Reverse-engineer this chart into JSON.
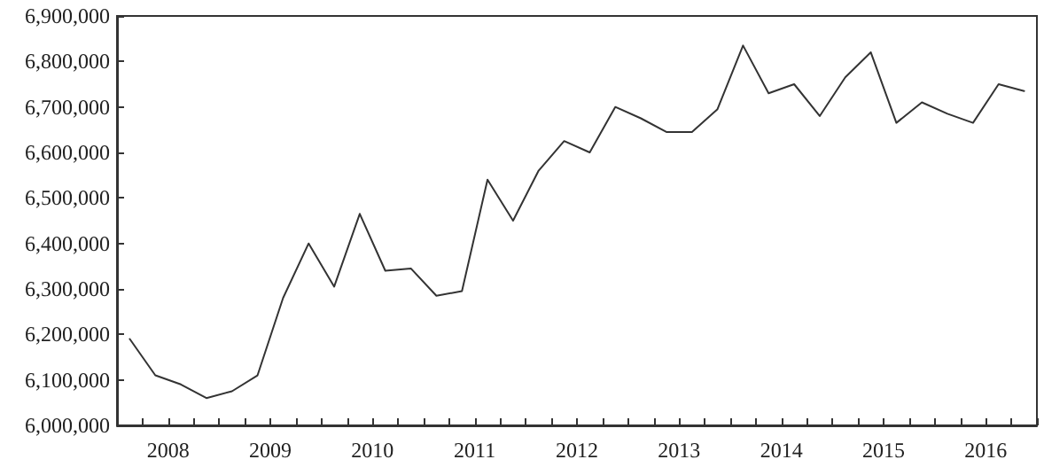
{
  "chart_data": {
    "type": "line",
    "x": [
      2008.125,
      2008.375,
      2008.625,
      2008.875,
      2009.125,
      2009.375,
      2009.625,
      2009.875,
      2010.125,
      2010.375,
      2010.625,
      2010.875,
      2011.125,
      2011.375,
      2011.625,
      2011.875,
      2012.125,
      2012.375,
      2012.625,
      2012.875,
      2013.125,
      2013.375,
      2013.625,
      2013.875,
      2014.125,
      2014.375,
      2014.625,
      2014.875,
      2015.125,
      2015.375,
      2015.625,
      2015.875,
      2016.125,
      2016.375,
      2016.625,
      2016.875
    ],
    "series": [
      {
        "color": "#333333",
        "values": [
          6190000,
          6110000,
          6090000,
          6060000,
          6075000,
          6110000,
          6280000,
          6400000,
          6305000,
          6465000,
          6340000,
          6345000,
          6285000,
          6295000,
          6540000,
          6450000,
          6560000,
          6625000,
          6600000,
          6700000,
          6675000,
          6645000,
          6645000,
          6695000,
          6835000,
          6730000,
          6750000,
          6680000,
          6765000,
          6820000,
          6665000,
          6710000,
          6685000,
          6665000,
          6750000,
          6735000
        ]
      }
    ],
    "xlim": [
      2008,
      2017
    ],
    "xticks": [
      {
        "value": 2008,
        "label": null
      },
      {
        "value": 2008.25,
        "label": null
      },
      {
        "value": 2008.5,
        "label": "2008"
      },
      {
        "value": 2008.75,
        "label": null
      },
      {
        "value": 2009,
        "label": null
      },
      {
        "value": 2009.25,
        "label": null
      },
      {
        "value": 2009.5,
        "label": "2009"
      },
      {
        "value": 2009.75,
        "label": null
      },
      {
        "value": 2010,
        "label": null
      },
      {
        "value": 2010.25,
        "label": null
      },
      {
        "value": 2010.5,
        "label": "2010"
      },
      {
        "value": 2010.75,
        "label": null
      },
      {
        "value": 2011,
        "label": null
      },
      {
        "value": 2011.25,
        "label": null
      },
      {
        "value": 2011.5,
        "label": "2011"
      },
      {
        "value": 2011.75,
        "label": null
      },
      {
        "value": 2012,
        "label": null
      },
      {
        "value": 2012.25,
        "label": null
      },
      {
        "value": 2012.5,
        "label": "2012"
      },
      {
        "value": 2012.75,
        "label": null
      },
      {
        "value": 2013,
        "label": null
      },
      {
        "value": 2013.25,
        "label": null
      },
      {
        "value": 2013.5,
        "label": "2013"
      },
      {
        "value": 2013.75,
        "label": null
      },
      {
        "value": 2014,
        "label": null
      },
      {
        "value": 2014.25,
        "label": null
      },
      {
        "value": 2014.5,
        "label": "2014"
      },
      {
        "value": 2014.75,
        "label": null
      },
      {
        "value": 2015,
        "label": null
      },
      {
        "value": 2015.25,
        "label": null
      },
      {
        "value": 2015.5,
        "label": "2015"
      },
      {
        "value": 2015.75,
        "label": null
      },
      {
        "value": 2016,
        "label": null
      },
      {
        "value": 2016.25,
        "label": null
      },
      {
        "value": 2016.5,
        "label": "2016"
      },
      {
        "value": 2016.75,
        "label": null
      },
      {
        "value": 2017,
        "label": null
      }
    ],
    "ylim": [
      6000000,
      6900000
    ],
    "yticks": [
      {
        "value": 6000000,
        "label": "6,000,000"
      },
      {
        "value": 6100000,
        "label": "6,100,000"
      },
      {
        "value": 6200000,
        "label": "6,200,000"
      },
      {
        "value": 6300000,
        "label": "6,300,000"
      },
      {
        "value": 6400000,
        "label": "6,400,000"
      },
      {
        "value": 6500000,
        "label": "6,500,000"
      },
      {
        "value": 6600000,
        "label": "6,600,000"
      },
      {
        "value": 6700000,
        "label": "6,700,000"
      },
      {
        "value": 6800000,
        "label": "6,800,000"
      },
      {
        "value": 6900000,
        "label": "6,900,000"
      }
    ],
    "grid": false,
    "marker": "none",
    "line_style": "solid"
  }
}
